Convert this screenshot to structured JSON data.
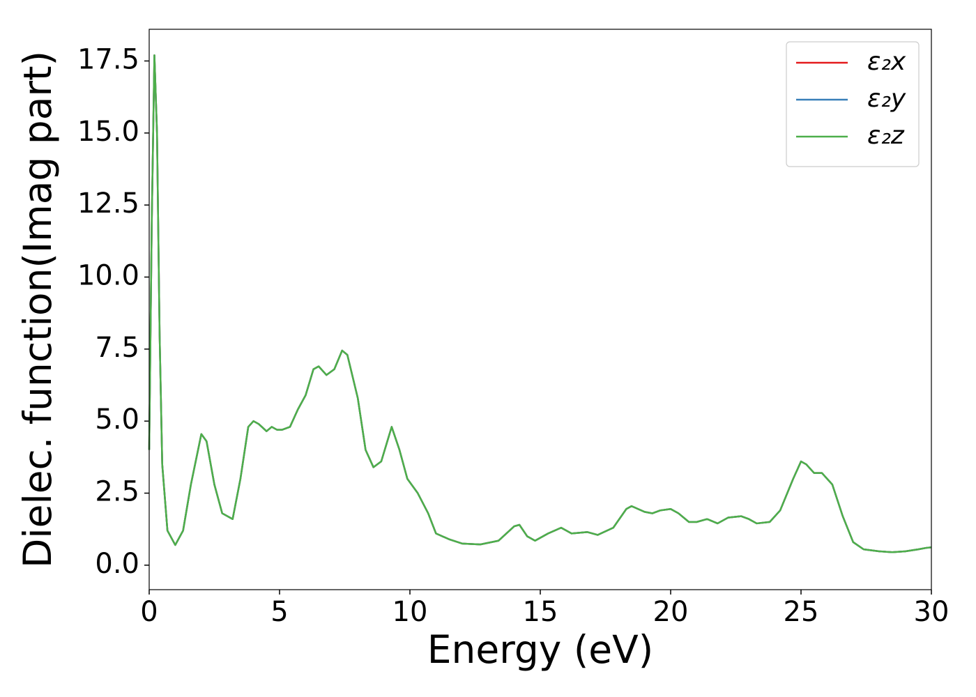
{
  "chart_data": {
    "type": "line",
    "xlabel": "Energy (eV)",
    "ylabel": "Dielec. function(Imag part)",
    "x": [
      0.0,
      0.1,
      0.2,
      0.3,
      0.4,
      0.5,
      0.7,
      1.0,
      1.3,
      1.6,
      2.0,
      2.2,
      2.5,
      2.8,
      3.2,
      3.5,
      3.8,
      4.0,
      4.2,
      4.5,
      4.7,
      4.9,
      5.1,
      5.4,
      5.7,
      6.0,
      6.3,
      6.5,
      6.8,
      7.1,
      7.4,
      7.6,
      8.0,
      8.3,
      8.6,
      8.9,
      9.3,
      9.6,
      9.9,
      10.3,
      10.7,
      11.0,
      11.5,
      12.0,
      12.7,
      13.4,
      14.0,
      14.2,
      14.5,
      14.8,
      15.3,
      15.8,
      16.2,
      16.8,
      17.2,
      17.8,
      18.3,
      18.5,
      19.0,
      19.3,
      19.6,
      20.0,
      20.3,
      20.7,
      21.0,
      21.4,
      21.8,
      22.2,
      22.7,
      23.0,
      23.3,
      23.8,
      24.2,
      24.7,
      25.0,
      25.2,
      25.5,
      25.8,
      26.2,
      26.6,
      27.0,
      27.4,
      28.0,
      28.5,
      29.0,
      29.5,
      29.8,
      30.0
    ],
    "series": [
      {
        "name": "ε₂x",
        "color": "#e41a1c",
        "values": [
          4.0,
          12,
          17.7,
          15,
          8,
          3.5,
          1.2,
          0.7,
          1.2,
          2.8,
          4.55,
          4.3,
          2.8,
          1.8,
          1.6,
          3.0,
          4.8,
          5.0,
          4.9,
          4.65,
          4.8,
          4.7,
          4.7,
          4.8,
          5.4,
          5.9,
          6.8,
          6.9,
          6.6,
          6.8,
          7.45,
          7.3,
          5.8,
          4.0,
          3.4,
          3.6,
          4.8,
          4.0,
          3.0,
          2.5,
          1.8,
          1.1,
          0.9,
          0.75,
          0.72,
          0.85,
          1.35,
          1.4,
          1.0,
          0.85,
          1.1,
          1.3,
          1.1,
          1.15,
          1.05,
          1.3,
          1.95,
          2.05,
          1.85,
          1.8,
          1.9,
          1.95,
          1.8,
          1.5,
          1.5,
          1.6,
          1.45,
          1.65,
          1.7,
          1.6,
          1.45,
          1.5,
          1.9,
          3.0,
          3.6,
          3.5,
          3.2,
          3.2,
          2.8,
          1.7,
          0.8,
          0.55,
          0.48,
          0.45,
          0.48,
          0.55,
          0.6,
          0.62
        ]
      },
      {
        "name": "ε₂y",
        "color": "#377eb8",
        "values": [
          4.0,
          12,
          17.7,
          15,
          8,
          3.5,
          1.2,
          0.7,
          1.2,
          2.8,
          4.55,
          4.3,
          2.8,
          1.8,
          1.6,
          3.0,
          4.8,
          5.0,
          4.9,
          4.65,
          4.8,
          4.7,
          4.7,
          4.8,
          5.4,
          5.9,
          6.8,
          6.9,
          6.6,
          6.8,
          7.45,
          7.3,
          5.8,
          4.0,
          3.4,
          3.6,
          4.8,
          4.0,
          3.0,
          2.5,
          1.8,
          1.1,
          0.9,
          0.75,
          0.72,
          0.85,
          1.35,
          1.4,
          1.0,
          0.85,
          1.1,
          1.3,
          1.1,
          1.15,
          1.05,
          1.3,
          1.95,
          2.05,
          1.85,
          1.8,
          1.9,
          1.95,
          1.8,
          1.5,
          1.5,
          1.6,
          1.45,
          1.65,
          1.7,
          1.6,
          1.45,
          1.5,
          1.9,
          3.0,
          3.6,
          3.5,
          3.2,
          3.2,
          2.8,
          1.7,
          0.8,
          0.55,
          0.48,
          0.45,
          0.48,
          0.55,
          0.6,
          0.62
        ]
      },
      {
        "name": "ε₂z",
        "color": "#4daf4a",
        "values": [
          4.0,
          12,
          17.7,
          15,
          8,
          3.5,
          1.2,
          0.7,
          1.2,
          2.8,
          4.55,
          4.3,
          2.8,
          1.8,
          1.6,
          3.0,
          4.8,
          5.0,
          4.9,
          4.65,
          4.8,
          4.7,
          4.7,
          4.8,
          5.4,
          5.9,
          6.8,
          6.9,
          6.6,
          6.8,
          7.45,
          7.3,
          5.8,
          4.0,
          3.4,
          3.6,
          4.8,
          4.0,
          3.0,
          2.5,
          1.8,
          1.1,
          0.9,
          0.75,
          0.72,
          0.85,
          1.35,
          1.4,
          1.0,
          0.85,
          1.1,
          1.3,
          1.1,
          1.15,
          1.05,
          1.3,
          1.95,
          2.05,
          1.85,
          1.8,
          1.9,
          1.95,
          1.8,
          1.5,
          1.5,
          1.6,
          1.45,
          1.65,
          1.7,
          1.6,
          1.45,
          1.5,
          1.9,
          3.0,
          3.6,
          3.5,
          3.2,
          3.2,
          2.8,
          1.7,
          0.8,
          0.55,
          0.48,
          0.45,
          0.48,
          0.55,
          0.6,
          0.62
        ]
      }
    ],
    "xlim": [
      0,
      30
    ],
    "xticks": [
      0,
      5,
      10,
      15,
      20,
      25,
      30
    ],
    "ylim": [
      -0.85,
      18.6
    ],
    "yticks": [
      {
        "value": 0,
        "label": "0.0"
      },
      2.5,
      {
        "value": 5,
        "label": "5.0"
      },
      7.5,
      {
        "value": 10,
        "label": "10.0"
      },
      12.5,
      {
        "value": 15,
        "label": "15.0"
      },
      17.5
    ],
    "grid": false,
    "legend": "upper right"
  }
}
